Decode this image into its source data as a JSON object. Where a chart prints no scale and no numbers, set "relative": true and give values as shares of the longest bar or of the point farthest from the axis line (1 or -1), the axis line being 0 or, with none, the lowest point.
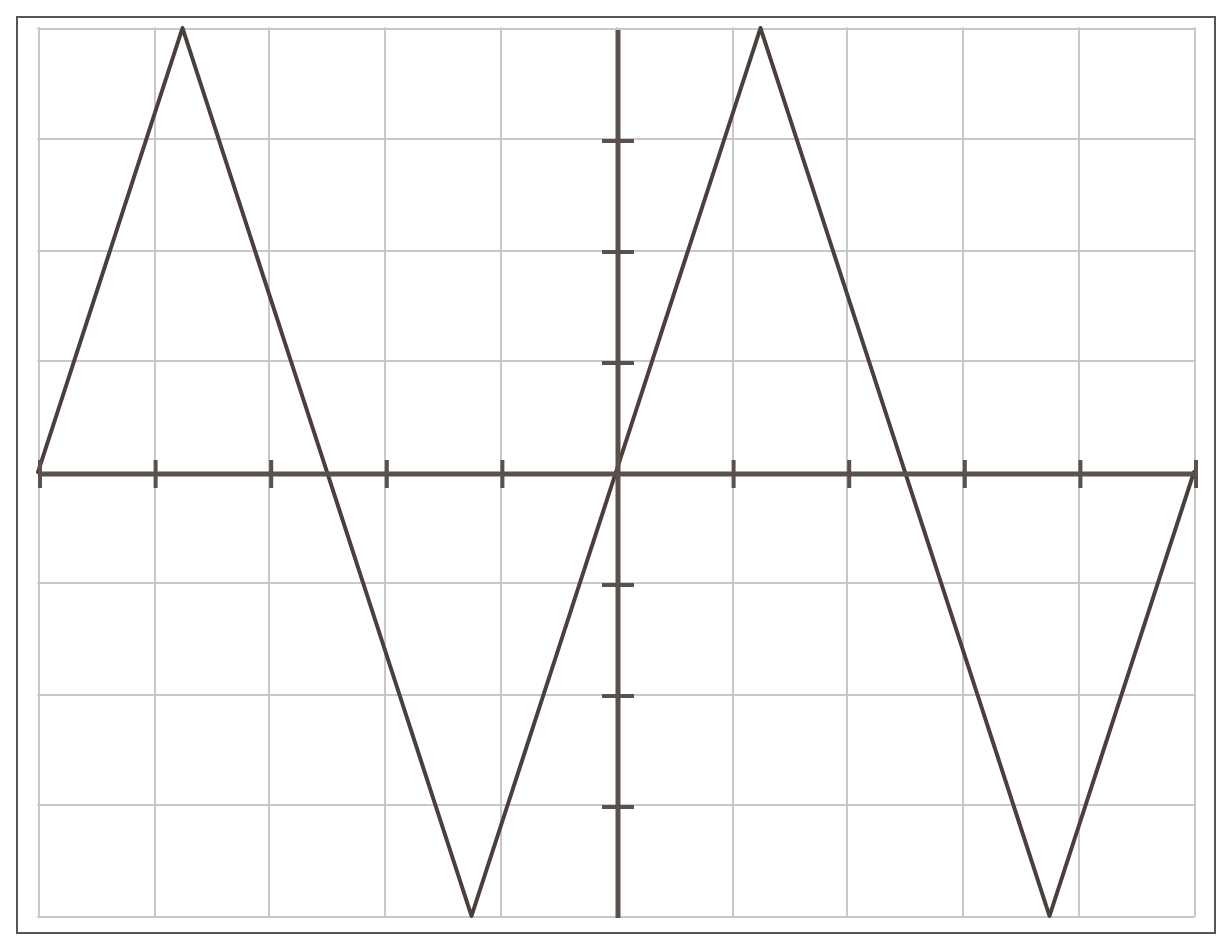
{
  "chart_data": {
    "type": "line",
    "relative": true,
    "categories": [
      null,
      null,
      null,
      null,
      null,
      null,
      null,
      null,
      null,
      null,
      null,
      null,
      null,
      null,
      null,
      null,
      null,
      null,
      null,
      null,
      null,
      null,
      null,
      null,
      null,
      null,
      null,
      null,
      null,
      null,
      null,
      null,
      null
    ],
    "series": [
      {
        "color": "#4a3f3c",
        "values": [
          0,
          0.25,
          0.5,
          0.75,
          1,
          0.75,
          0.5,
          0.25,
          0,
          -0.25,
          -0.5,
          -0.75,
          -1,
          -0.75,
          -0.5,
          -0.25,
          0,
          0.25,
          0.5,
          0.75,
          1,
          0.75,
          0.5,
          0.25,
          0,
          -0.25,
          -0.5,
          -0.75,
          -1,
          -0.75,
          -0.5,
          -0.25,
          0
        ]
      }
    ],
    "grid": true,
    "marker": "none",
    "line_style": "solid"
  }
}
